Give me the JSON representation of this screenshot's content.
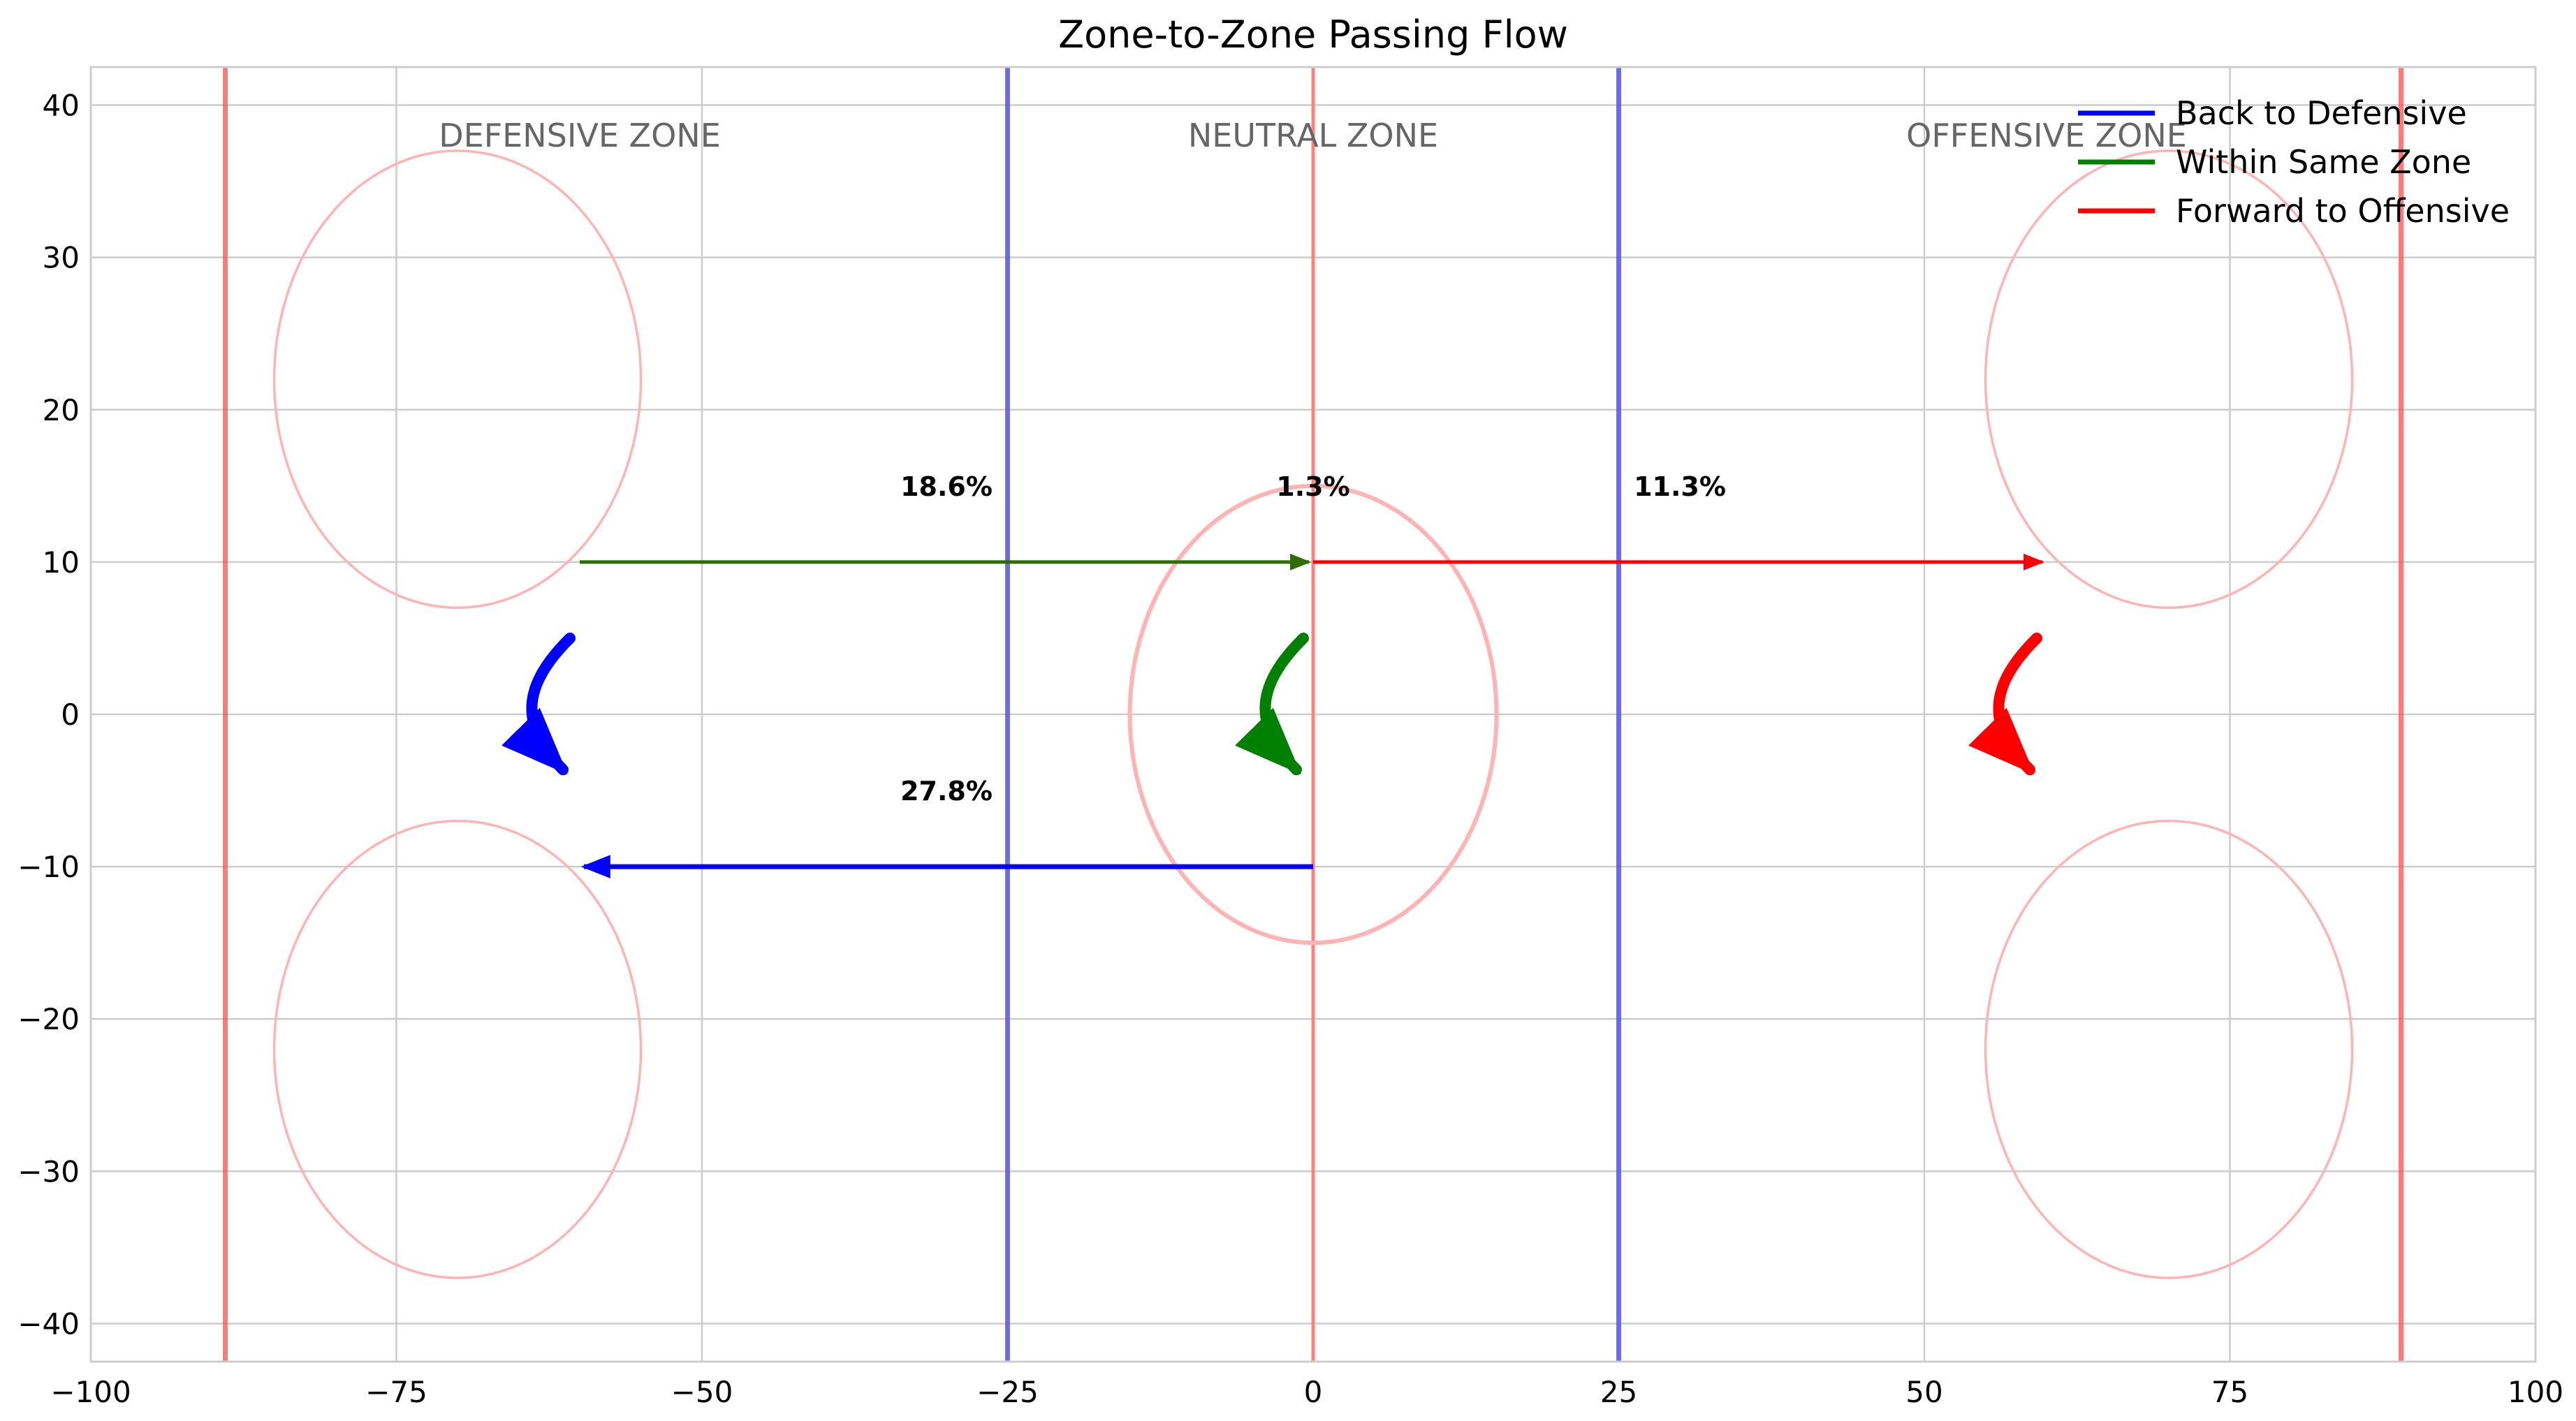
{
  "chart_data": {
    "type": "line",
    "title": "Zone-to-Zone Passing Flow",
    "xlabel": "",
    "ylabel": "",
    "xlim": [
      -100,
      100
    ],
    "ylim": [
      -42.5,
      42.5
    ],
    "xticks": [
      -100,
      -75,
      -50,
      -25,
      0,
      25,
      50,
      75,
      100
    ],
    "yticks": [
      -40,
      -30,
      -20,
      -10,
      0,
      10,
      20,
      30,
      40
    ],
    "grid": true,
    "legend_position": "top-right",
    "colors": {
      "back": "#0000ff",
      "within": "#008000",
      "forward": "#ff0000",
      "goal_line": "#ff4d4d",
      "blue_line": "#4d4de6",
      "center_line": "#ff8080",
      "circle": "#ffb3b3"
    },
    "series": [
      {
        "name": "Back to Defensive",
        "key": "back"
      },
      {
        "name": "Within Same Zone",
        "key": "within"
      },
      {
        "name": "Forward to Offensive",
        "key": "forward"
      }
    ],
    "rink": {
      "goal_lines": [
        -89,
        89
      ],
      "blue_lines": [
        -25,
        25
      ],
      "center_line": 0,
      "center_circle": {
        "cx": 0,
        "cy": 0,
        "r": 15
      },
      "faceoff_circles": [
        {
          "cx": -70,
          "cy": 22,
          "r": 15
        },
        {
          "cx": -70,
          "cy": -22,
          "r": 15
        },
        {
          "cx": 70,
          "cy": 22,
          "r": 15
        },
        {
          "cx": 70,
          "cy": -22,
          "r": 15
        }
      ]
    },
    "zones": [
      {
        "label": "DEFENSIVE ZONE",
        "x": -60,
        "y": 38
      },
      {
        "label": "NEUTRAL ZONE",
        "x": 0,
        "y": 38
      },
      {
        "label": "OFFENSIVE ZONE",
        "x": 60,
        "y": 38
      }
    ],
    "flows": [
      {
        "from": [
          -60,
          10
        ],
        "to": [
          0,
          10
        ],
        "key": "within",
        "label": "18.6%",
        "label_pos": [
          -30,
          15
        ]
      },
      {
        "from": [
          0,
          10
        ],
        "to": [
          60,
          10
        ],
        "key": "forward",
        "label": "11.3%",
        "label_pos": [
          30,
          15
        ]
      },
      {
        "from": [
          0,
          -10
        ],
        "to": [
          -60,
          -10
        ],
        "key": "back",
        "label": "27.8%",
        "label_pos": [
          -30,
          -5
        ]
      }
    ],
    "self_flows": [
      {
        "x": -60,
        "key": "back"
      },
      {
        "x": 0,
        "key": "within",
        "label": "1.3%",
        "label_pos": [
          0,
          15
        ]
      },
      {
        "x": 60,
        "key": "forward"
      }
    ]
  }
}
